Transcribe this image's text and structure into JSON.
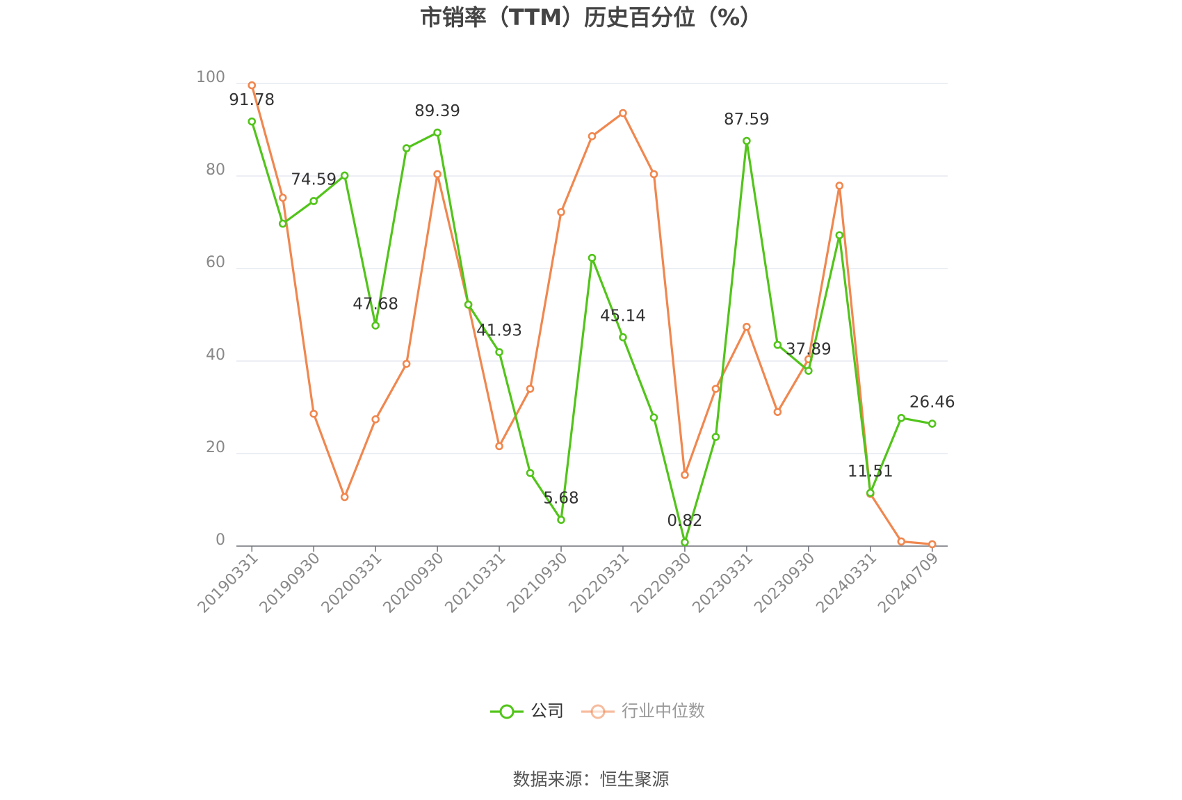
{
  "chart_data": {
    "type": "line",
    "title": "市销率（TTM）历史百分位（%）",
    "source": "数据来源：恒生聚源",
    "categories": [
      "20190331",
      null,
      "20190930",
      null,
      "20200331",
      null,
      "20200930",
      null,
      "20210331",
      null,
      "20210930",
      null,
      "20220331",
      null,
      "20220930",
      null,
      "20230331",
      null,
      "20230930",
      null,
      "20240331",
      null,
      "20240709"
    ],
    "series": [
      {
        "name": "公司",
        "color": "#52c41a",
        "values": [
          91.78,
          69.7,
          74.59,
          80.1,
          47.68,
          86.0,
          89.39,
          52.2,
          41.93,
          15.8,
          5.68,
          62.3,
          45.14,
          27.8,
          0.82,
          23.6,
          87.59,
          43.5,
          37.89,
          67.2,
          11.51,
          27.7,
          26.46
        ],
        "value_labels": [
          "91.78",
          null,
          "74.59",
          null,
          "47.68",
          null,
          "89.39",
          null,
          "41.93",
          null,
          "5.68",
          null,
          "45.14",
          null,
          "0.82",
          null,
          "87.59",
          null,
          "37.89",
          null,
          "11.51",
          null,
          "26.46"
        ]
      },
      {
        "name": "行业中位数",
        "color": "#f0874f",
        "values": [
          99.6,
          75.3,
          28.6,
          10.6,
          27.4,
          39.4,
          80.4,
          52.2,
          21.6,
          34.0,
          72.2,
          88.6,
          93.6,
          80.4,
          15.4,
          34.0,
          47.4,
          29.0,
          40.4,
          77.9,
          11.3,
          1.0,
          0.4
        ]
      }
    ],
    "ylim": [
      0,
      100
    ],
    "yticks": [
      0,
      20,
      40,
      60,
      80,
      100
    ],
    "grid": true
  }
}
